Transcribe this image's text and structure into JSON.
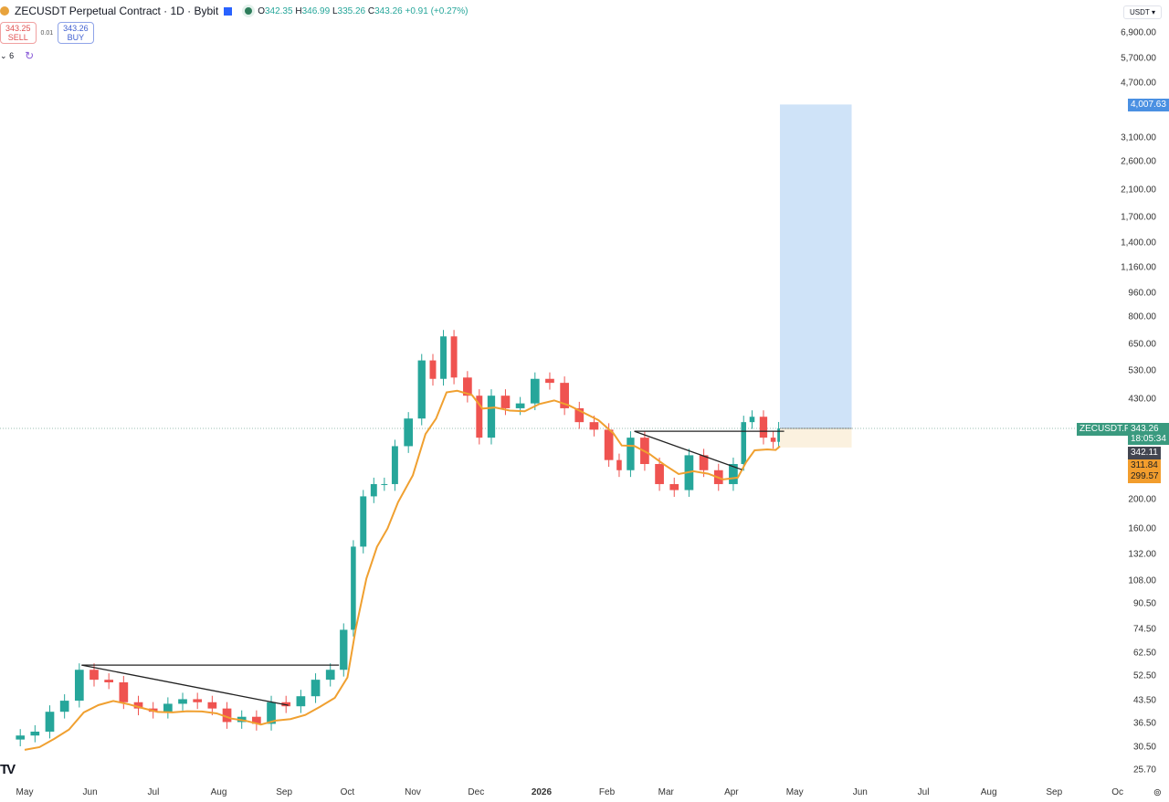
{
  "header": {
    "symbol": "ZECUSDT Perpetual Contract · 1D · Bybit",
    "open_label": "O",
    "open": "342.35",
    "high_label": "H",
    "high": "346.99",
    "low_label": "L",
    "low": "335.26",
    "close_label": "C",
    "close": "343.26",
    "change": "+0.91 (+0.27%)"
  },
  "trade": {
    "sell_price": "343.25",
    "sell_label": "SELL",
    "spread": "0.01",
    "buy_price": "343.26",
    "buy_label": "BUY"
  },
  "indicators": {
    "collapse_label": "6"
  },
  "currency_select": "USDT",
  "price_tags": {
    "target": "4,007.63",
    "symbol_tag": "ZECUSDT.P",
    "last_price": "343.26",
    "countdown": "18:05:34",
    "prev": "342.11",
    "ma1": "311.84",
    "ma2": "299.57"
  },
  "colors": {
    "up": "#26a69a",
    "down": "#ef5350",
    "ma": "#f0a030",
    "target_zone": "#cfe3f8",
    "stop_zone": "#fbf1df",
    "last_price": "#3a9a7f",
    "target_tag": "#4a90e2"
  },
  "chart_data": {
    "type": "candlestick",
    "scale": "log",
    "ylim": [
      25.7,
      6900
    ],
    "y_ticks": [
      "6,900.00",
      "5,700.00",
      "4,700.00",
      "3,100.00",
      "2,600.00",
      "2,100.00",
      "1,700.00",
      "1,400.00",
      "1,160.00",
      "960.00",
      "800.00",
      "650.00",
      "530.00",
      "430.00",
      "200.00",
      "160.00",
      "132.00",
      "108.00",
      "90.50",
      "74.50",
      "62.50",
      "52.50",
      "43.50",
      "36.50",
      "30.50",
      "25.70"
    ],
    "x_ticks": [
      {
        "label": "May",
        "date": "2025-05-01"
      },
      {
        "label": "Jun",
        "date": "2025-06-01"
      },
      {
        "label": "Jul",
        "date": "2025-07-01"
      },
      {
        "label": "Aug",
        "date": "2025-08-01"
      },
      {
        "label": "Sep",
        "date": "2025-09-01"
      },
      {
        "label": "Oct",
        "date": "2025-10-01"
      },
      {
        "label": "Nov",
        "date": "2025-11-01"
      },
      {
        "label": "Dec",
        "date": "2025-12-01"
      },
      {
        "label": "2026",
        "date": "2026-01-01",
        "bold": true
      },
      {
        "label": "Feb",
        "date": "2026-02-01"
      },
      {
        "label": "Mar",
        "date": "2026-03-01"
      },
      {
        "label": "Apr",
        "date": "2026-04-01"
      },
      {
        "label": "May",
        "date": "2026-05-01"
      },
      {
        "label": "Jun",
        "date": "2026-06-01"
      },
      {
        "label": "Jul",
        "date": "2026-07-01"
      },
      {
        "label": "Aug",
        "date": "2026-08-01"
      },
      {
        "label": "Sep",
        "date": "2026-09-01"
      },
      {
        "label": "Oc",
        "date": "2026-10-01"
      }
    ],
    "closes": [
      [
        "2025-05-01",
        33.4
      ],
      [
        "2025-05-08",
        34.4
      ],
      [
        "2025-05-15",
        40
      ],
      [
        "2025-05-22",
        43.5
      ],
      [
        "2025-05-29",
        55
      ],
      [
        "2025-06-05",
        51
      ],
      [
        "2025-06-12",
        50
      ],
      [
        "2025-06-19",
        43
      ],
      [
        "2025-06-26",
        41
      ],
      [
        "2025-07-03",
        40
      ],
      [
        "2025-07-10",
        42.5
      ],
      [
        "2025-07-17",
        44
      ],
      [
        "2025-07-24",
        43
      ],
      [
        "2025-07-31",
        41
      ],
      [
        "2025-08-07",
        37
      ],
      [
        "2025-08-14",
        38.5
      ],
      [
        "2025-08-21",
        36.5
      ],
      [
        "2025-08-28",
        43
      ],
      [
        "2025-09-04",
        41.7
      ],
      [
        "2025-09-11",
        45
      ],
      [
        "2025-09-18",
        51
      ],
      [
        "2025-09-25",
        55
      ],
      [
        "2025-10-01",
        74.5
      ],
      [
        "2025-10-05",
        140
      ],
      [
        "2025-10-10",
        205
      ],
      [
        "2025-10-15",
        225
      ],
      [
        "2025-10-20",
        225
      ],
      [
        "2025-10-25",
        300
      ],
      [
        "2025-11-01",
        370
      ],
      [
        "2025-11-07",
        575
      ],
      [
        "2025-11-12",
        500
      ],
      [
        "2025-11-17",
        690
      ],
      [
        "2025-11-22",
        505
      ],
      [
        "2025-11-29",
        440
      ],
      [
        "2025-12-04",
        320
      ],
      [
        "2025-12-10",
        440
      ],
      [
        "2025-12-17",
        400
      ],
      [
        "2025-12-24",
        415
      ],
      [
        "2025-12-31",
        500
      ],
      [
        "2026-01-07",
        485
      ],
      [
        "2026-01-14",
        400
      ],
      [
        "2026-01-21",
        360
      ],
      [
        "2026-01-28",
        340
      ],
      [
        "2026-02-04",
        270
      ],
      [
        "2026-02-08",
        250
      ],
      [
        "2026-02-14",
        320
      ],
      [
        "2026-02-21",
        262
      ],
      [
        "2026-02-28",
        225
      ],
      [
        "2026-03-07",
        215
      ],
      [
        "2026-03-14",
        280
      ],
      [
        "2026-03-21",
        250
      ],
      [
        "2026-03-28",
        225
      ],
      [
        "2026-04-04",
        262
      ],
      [
        "2026-04-08",
        360
      ],
      [
        "2026-04-12",
        375
      ],
      [
        "2026-04-18",
        320
      ],
      [
        "2026-04-22",
        310
      ],
      [
        "2026-04-24",
        343.26
      ]
    ],
    "trendlines": [
      [
        [
          "2025-05-28",
          57
        ],
        [
          "2025-09-27",
          57
        ]
      ],
      [
        [
          "2025-05-28",
          57
        ],
        [
          "2025-09-03",
          42
        ]
      ],
      [
        [
          "2026-02-14",
          336
        ],
        [
          "2026-04-26",
          336
        ]
      ],
      [
        [
          "2026-02-14",
          336
        ],
        [
          "2026-04-06",
          251
        ]
      ]
    ],
    "long_position": {
      "start": "2026-04-24",
      "end": "2026-05-28",
      "entry": 343.26,
      "target": 4007.63,
      "stop": 297
    }
  }
}
